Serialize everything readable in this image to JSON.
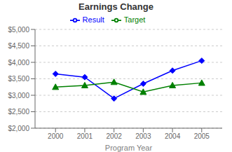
{
  "chart_data": {
    "type": "line",
    "title": "Earnings Change",
    "xlabel": "Program Year",
    "x": [
      2000,
      2001,
      2002,
      2003,
      2004,
      2005
    ],
    "series": [
      {
        "name": "Result",
        "color": "#0000FF",
        "marker": "diamond",
        "values": [
          3650,
          3550,
          2900,
          3350,
          3750,
          4050
        ]
      },
      {
        "name": "Target",
        "color": "#008000",
        "marker": "triangle",
        "values": [
          3250,
          3300,
          3400,
          3100,
          3300,
          3375
        ]
      }
    ],
    "xlim": [
      1999.3,
      2005.7
    ],
    "xticks": [
      2000,
      2001,
      2002,
      2003,
      2004,
      2005
    ],
    "ylim": [
      2000,
      5000
    ],
    "yticks": [
      {
        "value": 2000,
        "label": "$2,000"
      },
      {
        "value": 2500,
        "label": "$2,500"
      },
      {
        "value": 3000,
        "label": "$3,000"
      },
      {
        "value": 3500,
        "label": "$3,500"
      },
      {
        "value": 4000,
        "label": "$4,000"
      },
      {
        "value": 4500,
        "label": "$4,500"
      },
      {
        "value": 5000,
        "label": "$5,000"
      }
    ],
    "grid": true,
    "legend": "top"
  }
}
